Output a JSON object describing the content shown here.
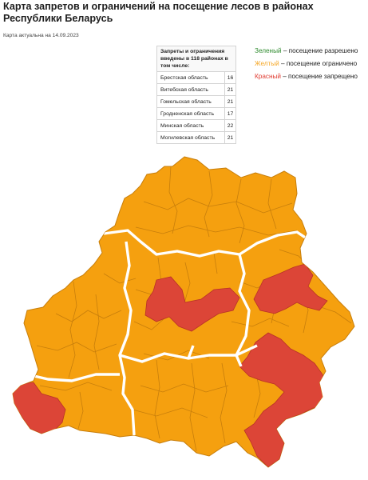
{
  "title": "Карта запретов и ограничений на посещение лесов в районах Республики Беларусь",
  "actual_date": "Карта актуальна на 14.09.2023",
  "table": {
    "header": "Запреты и ограничения введены в 118 районах в том числе:",
    "rows": [
      {
        "region": "Брестская область",
        "count": "16"
      },
      {
        "region": "Витебская область",
        "count": "21"
      },
      {
        "region": "Гомельская область",
        "count": "21"
      },
      {
        "region": "Гродненская область",
        "count": "17"
      },
      {
        "region": "Минская область",
        "count": "22"
      },
      {
        "region": "Могилевская область",
        "count": "21"
      }
    ]
  },
  "legend": [
    {
      "word": "Зеленый",
      "text": " – посещение разрешено",
      "color": "#2e8b2e"
    },
    {
      "word": "Желтый",
      "text": " – посещение ограничено",
      "color": "#f5a623"
    },
    {
      "word": "Красный",
      "text": " – посещение запрещено",
      "color": "#e03c31"
    }
  ],
  "map_colors": {
    "restricted": "#f5a00f",
    "banned": "#dc4537",
    "district_border": "#c77e0c",
    "oblast_border": "#ffffff"
  }
}
